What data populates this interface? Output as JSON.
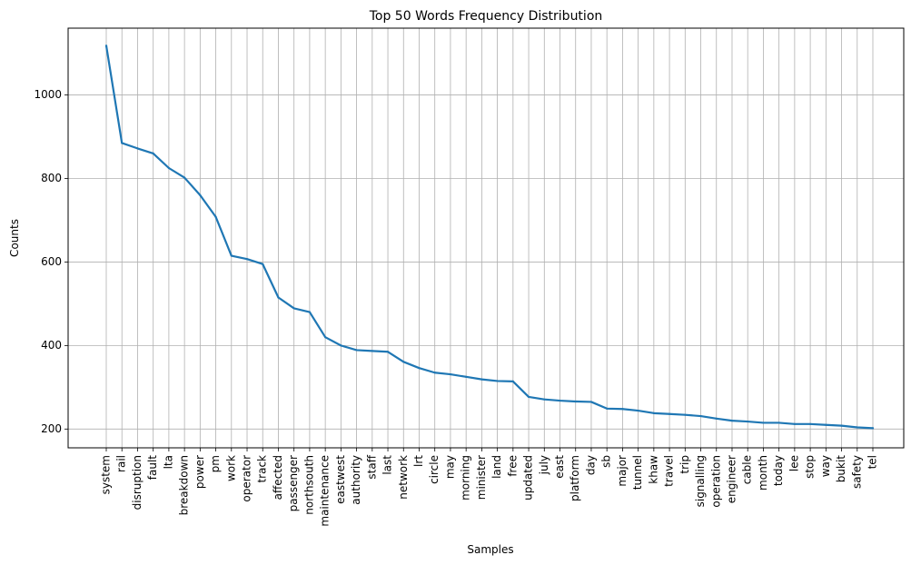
{
  "chart_data": {
    "type": "line",
    "title": "Top 50 Words Frequency Distribution",
    "xlabel": "Samples",
    "ylabel": "Counts",
    "grid": true,
    "ylim": [
      155,
      1160
    ],
    "yticks": [
      200,
      400,
      600,
      800,
      1000
    ],
    "line_color": "#1f77b4",
    "grid_color": "#b0b0b0",
    "categories": [
      "system",
      "rail",
      "disruption",
      "fault",
      "lta",
      "breakdown",
      "power",
      "pm",
      "work",
      "operator",
      "track",
      "affected",
      "passenger",
      "northsouth",
      "maintenance",
      "eastwest",
      "authority",
      "staff",
      "last",
      "network",
      "lrt",
      "circle",
      "may",
      "morning",
      "minister",
      "land",
      "free",
      "updated",
      "july",
      "east",
      "platform",
      "day",
      "sb",
      "major",
      "tunnel",
      "khaw",
      "travel",
      "trip",
      "signalling",
      "operation",
      "engineer",
      "cable",
      "month",
      "today",
      "lee",
      "stop",
      "way",
      "bukit",
      "safety",
      "tel"
    ],
    "values": [
      1118,
      885,
      872,
      860,
      825,
      802,
      760,
      708,
      615,
      607,
      595,
      515,
      489,
      480,
      420,
      400,
      389,
      387,
      385,
      361,
      346,
      335,
      331,
      325,
      319,
      315,
      314,
      277,
      271,
      268,
      266,
      265,
      249,
      248,
      244,
      238,
      236,
      234,
      231,
      225,
      220,
      218,
      215,
      215,
      212,
      212,
      210,
      208,
      204,
      202
    ]
  }
}
